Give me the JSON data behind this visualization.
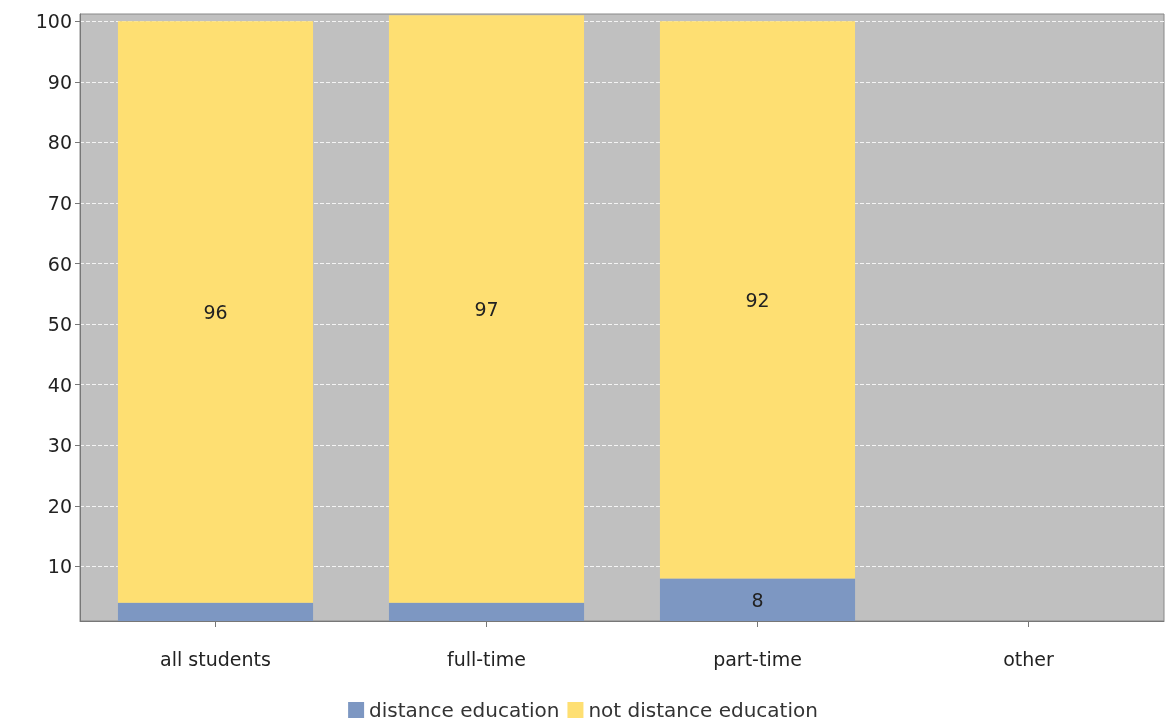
{
  "chart_data": {
    "type": "bar",
    "stacked": true,
    "categories": [
      "all students",
      "full-time",
      "part-time",
      "other"
    ],
    "series": [
      {
        "name": "distance education",
        "color": "#7d97c2",
        "values": [
          4,
          4,
          8,
          null
        ],
        "value_labels": [
          null,
          null,
          "8",
          null
        ]
      },
      {
        "name": "not distance education",
        "color": "#fedf72",
        "values": [
          96,
          97,
          92,
          null
        ],
        "value_labels": [
          "96",
          "97",
          "92",
          null
        ]
      }
    ],
    "ylim": [
      1,
      101.2
    ],
    "yticks": [
      10,
      20,
      30,
      40,
      50,
      60,
      70,
      80,
      90,
      100
    ],
    "grid": "y",
    "legend": "bottom"
  }
}
